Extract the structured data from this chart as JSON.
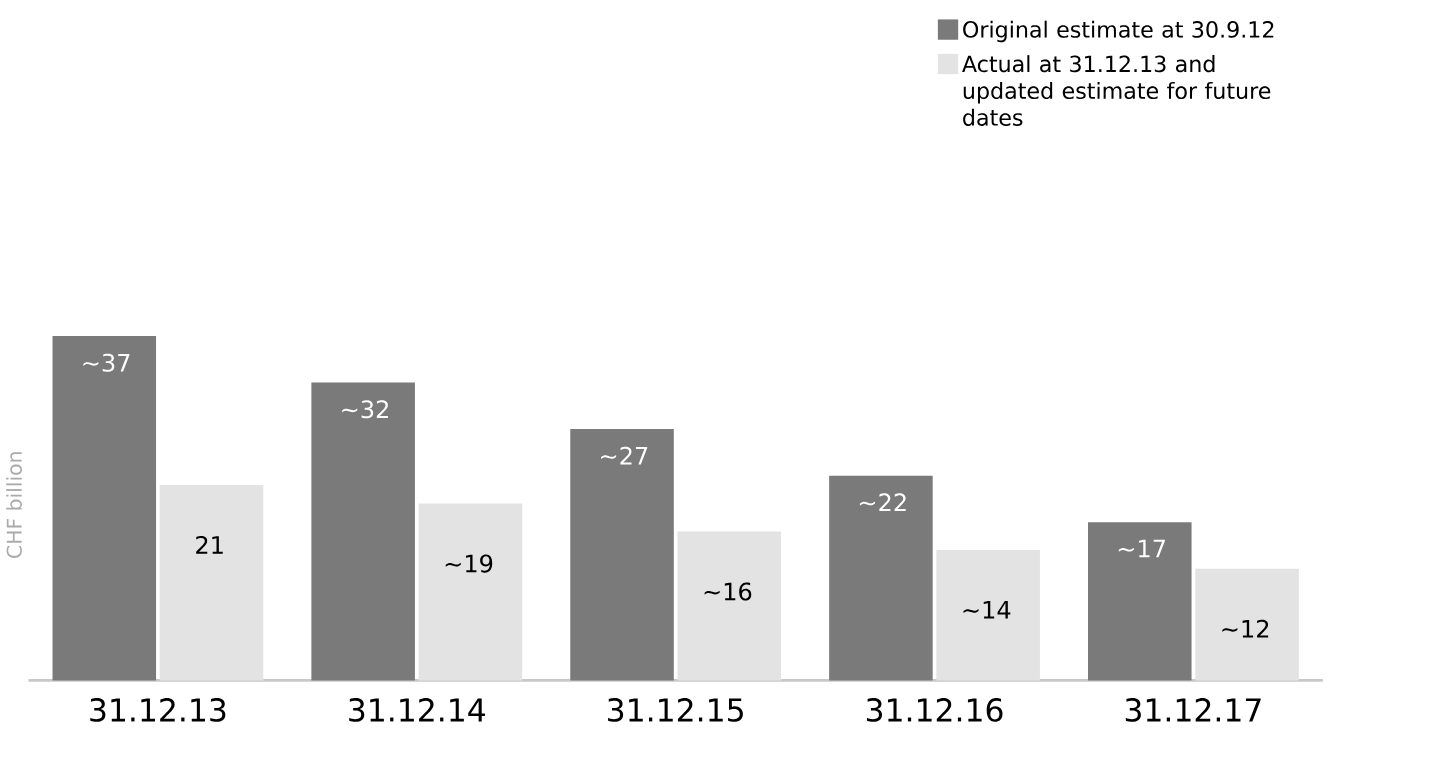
{
  "chart_data": {
    "type": "bar",
    "ylabel": "CHF billion",
    "legend": "top right",
    "categories": [
      "31.12.13",
      "31.12.14",
      "31.12.15",
      "31.12.16",
      "31.12.17"
    ],
    "series": [
      {
        "name": "Original estimate at 30.9.12",
        "color": "#7a7a7a",
        "values": [
          37,
          32,
          27,
          22,
          17
        ],
        "value_labels": [
          "~37",
          "~32",
          "~27",
          "~22",
          "~17"
        ]
      },
      {
        "name": "Actual at 31.12.13 and updated estimate for future dates",
        "color": "#e3e3e3",
        "values": [
          21,
          19,
          16,
          14,
          12
        ],
        "value_labels": [
          "21",
          "~19",
          "~16",
          "~14",
          "~12"
        ]
      }
    ]
  }
}
